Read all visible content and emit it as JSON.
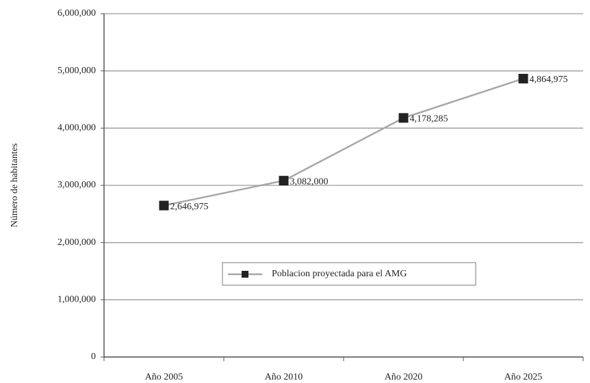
{
  "chart_data": {
    "type": "line",
    "y_label": "Número de habitantes",
    "categories": [
      "Año 2005",
      "Año 2010",
      "Año 2020",
      "Año 2025"
    ],
    "series": [
      {
        "name": "Poblacion proyectada para el AMG",
        "color": "#a6a6a6",
        "marker_color": "#222222",
        "values": [
          2646975,
          3082000,
          4178285,
          4864975
        ],
        "value_labels": [
          "2,646,975",
          "3,082,000",
          "4,178,285",
          "4,864,975"
        ]
      }
    ],
    "ylim": [
      0,
      6000000
    ],
    "yticks": [
      0,
      {
        "value": 1000000,
        "label": "1,000,000"
      },
      {
        "value": 2000000,
        "label": "2,000,000"
      },
      {
        "value": 3000000,
        "label": "3,000,000"
      },
      {
        "value": 4000000,
        "label": "4,000,000"
      },
      {
        "value": 5000000,
        "label": "5,000,000"
      },
      {
        "value": 6000000,
        "label": "6,000,000"
      }
    ],
    "grid": true,
    "legend": "center"
  }
}
